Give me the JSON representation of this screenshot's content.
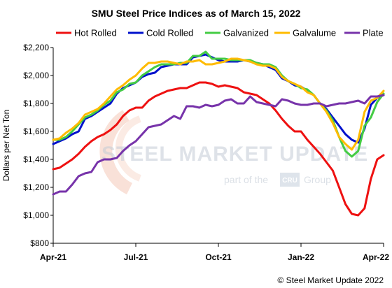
{
  "chart_data": {
    "type": "line",
    "title": "SMU Steel Price Indices as of March 15, 2022",
    "xlabel": "",
    "ylabel": "Dollars per Net Ton",
    "ylim": [
      800,
      2200
    ],
    "yticks": [
      "$800",
      "$1,000",
      "$1,200",
      "$1,400",
      "$1,600",
      "$1,800",
      "$2,000",
      "$2,200"
    ],
    "ytick_values": [
      800,
      1000,
      1200,
      1400,
      1600,
      1800,
      2000,
      2200
    ],
    "xticks": [
      "Apr-21",
      "Jul-21",
      "Oct-21",
      "Jan-22",
      "Apr-22"
    ],
    "xtick_positions": [
      0,
      13,
      26,
      39,
      52
    ],
    "xlim": [
      0,
      52
    ],
    "grid": false,
    "legend_position": "top",
    "x": [
      0,
      1,
      2,
      3,
      4,
      5,
      6,
      7,
      8,
      9,
      10,
      11,
      12,
      13,
      14,
      15,
      16,
      17,
      18,
      19,
      20,
      21,
      22,
      23,
      24,
      25,
      26,
      27,
      28,
      29,
      30,
      31,
      32,
      33,
      34,
      35,
      36,
      37,
      38,
      39,
      40,
      41,
      42,
      43,
      44,
      45,
      46,
      47,
      48,
      49,
      50,
      51,
      52
    ],
    "series": [
      {
        "name": "Hot Rolled",
        "color": "#ee1111",
        "values": [
          1330,
          1340,
          1370,
          1400,
          1440,
          1490,
          1530,
          1560,
          1580,
          1610,
          1650,
          1710,
          1750,
          1770,
          1770,
          1820,
          1850,
          1870,
          1890,
          1900,
          1910,
          1910,
          1930,
          1950,
          1950,
          1940,
          1920,
          1930,
          1920,
          1910,
          1880,
          1870,
          1860,
          1830,
          1800,
          1750,
          1690,
          1640,
          1600,
          1600,
          1540,
          1490,
          1440,
          1380,
          1320,
          1200,
          1080,
          1010,
          1000,
          1050,
          1260,
          1400,
          1430
        ]
      },
      {
        "name": "Cold Rolled",
        "color": "#0011cc",
        "values": [
          1510,
          1530,
          1550,
          1580,
          1600,
          1690,
          1710,
          1740,
          1770,
          1800,
          1870,
          1910,
          1930,
          1950,
          1990,
          2010,
          2020,
          2060,
          2070,
          2080,
          2080,
          2080,
          2130,
          2140,
          2150,
          2130,
          2110,
          2100,
          2100,
          2100,
          2110,
          2100,
          2090,
          2080,
          2060,
          2040,
          1980,
          1960,
          1930,
          1920,
          1890,
          1860,
          1800,
          1760,
          1700,
          1640,
          1580,
          1540,
          1520,
          1620,
          1790,
          1840,
          1860
        ]
      },
      {
        "name": "Galvanized",
        "color": "#44cc44",
        "values": [
          1540,
          1540,
          1560,
          1600,
          1650,
          1700,
          1720,
          1750,
          1790,
          1820,
          1880,
          1900,
          1940,
          1950,
          2000,
          2030,
          2060,
          2080,
          2080,
          2080,
          2090,
          2090,
          2140,
          2140,
          2170,
          2120,
          2120,
          2120,
          2110,
          2110,
          2110,
          2110,
          2090,
          2080,
          2080,
          2060,
          2000,
          1960,
          1940,
          1910,
          1900,
          1860,
          1800,
          1750,
          1680,
          1560,
          1460,
          1420,
          1460,
          1640,
          1700,
          1810,
          1870
        ]
      },
      {
        "name": "Galvalume",
        "color": "#ffbb00",
        "values": [
          1540,
          1550,
          1590,
          1620,
          1660,
          1720,
          1740,
          1760,
          1800,
          1850,
          1900,
          1930,
          1970,
          2000,
          2050,
          2090,
          2090,
          2100,
          2100,
          2090,
          2080,
          2100,
          2100,
          2110,
          2080,
          2080,
          2090,
          2100,
          2120,
          2120,
          2110,
          2100,
          2080,
          2070,
          2070,
          2050,
          1990,
          1960,
          1940,
          1920,
          1880,
          1860,
          1800,
          1740,
          1660,
          1560,
          1510,
          1470,
          1540,
          1740,
          1820,
          1840,
          1890
        ]
      },
      {
        "name": "Plate",
        "color": "#7733aa",
        "values": [
          1150,
          1170,
          1170,
          1220,
          1280,
          1300,
          1310,
          1380,
          1400,
          1400,
          1410,
          1460,
          1500,
          1530,
          1580,
          1630,
          1640,
          1650,
          1680,
          1710,
          1690,
          1780,
          1780,
          1770,
          1790,
          1780,
          1790,
          1820,
          1830,
          1800,
          1800,
          1850,
          1810,
          1800,
          1790,
          1780,
          1830,
          1820,
          1800,
          1790,
          1790,
          1800,
          1800,
          1780,
          1790,
          1800,
          1800,
          1810,
          1820,
          1800,
          1850,
          1850,
          1860
        ]
      }
    ]
  },
  "watermark": {
    "brand": "STEEL MARKET UPDATE",
    "tagline_left": "part of the",
    "tagline_mid": "CRU",
    "tagline_right": "Group"
  },
  "footer": {
    "copyright": "© Steel Market Update 2022"
  }
}
